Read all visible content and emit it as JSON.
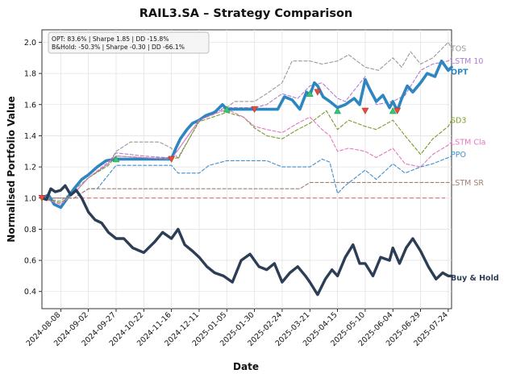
{
  "chart_data": {
    "type": "line",
    "title": "RAIL3.SA – Strategy Comparison",
    "xlabel": "Date",
    "ylabel": "Normalised Portfolio Value",
    "ylim": [
      0.29,
      2.08
    ],
    "yticks": [
      0.4,
      0.6,
      0.8,
      1.0,
      1.2,
      1.4,
      1.6,
      1.8,
      2.0
    ],
    "ytick_labels": [
      "0.4",
      "0.6",
      "0.8",
      "1.0",
      "1.2",
      "1.4",
      "1.6",
      "1.8",
      "2.0"
    ],
    "xrange": [
      "2024-07-22",
      "2025-07-27"
    ],
    "xticks": [
      "2024-08-08",
      "2024-09-02",
      "2024-09-27",
      "2024-10-22",
      "2024-11-16",
      "2024-12-11",
      "2025-01-05",
      "2025-01-30",
      "2025-02-24",
      "2025-03-21",
      "2025-04-15",
      "2025-05-10",
      "2025-06-04",
      "2025-06-29",
      "2025-07-24"
    ],
    "grid": true,
    "baseline": 1.0,
    "annotation": {
      "lines": [
        "OPT: 83.6% | Sharpe 1.85 | DD -15.8%",
        "B&Hold: -50.3% | Sharpe -0.30 | DD -66.1%"
      ],
      "position": "top-left"
    },
    "series": [
      {
        "name": "TOS",
        "color": "#999999",
        "style": "dashed",
        "x": [
          "2024-07-22",
          "2024-08-08",
          "2024-08-20",
          "2024-09-02",
          "2024-09-20",
          "2024-09-27",
          "2024-10-10",
          "2024-10-22",
          "2024-11-05",
          "2024-11-16",
          "2024-11-22",
          "2024-12-05",
          "2024-12-11",
          "2024-12-25",
          "2025-01-05",
          "2025-01-12",
          "2025-01-30",
          "2025-02-10",
          "2025-02-24",
          "2025-03-05",
          "2025-03-21",
          "2025-04-01",
          "2025-04-15",
          "2025-04-25",
          "2025-05-10",
          "2025-05-22",
          "2025-06-04",
          "2025-06-12",
          "2025-06-20",
          "2025-06-29",
          "2025-07-10",
          "2025-07-24",
          "2025-07-27"
        ],
        "y": [
          1.0,
          0.98,
          1.05,
          1.13,
          1.22,
          1.3,
          1.36,
          1.36,
          1.36,
          1.32,
          1.25,
          1.42,
          1.5,
          1.56,
          1.58,
          1.62,
          1.62,
          1.67,
          1.74,
          1.88,
          1.88,
          1.86,
          1.88,
          1.92,
          1.84,
          1.82,
          1.9,
          1.84,
          1.94,
          1.86,
          1.9,
          2.0,
          1.96
        ]
      },
      {
        "name": "LSTM 10",
        "color": "#b07cd6",
        "style": "dashed",
        "x": [
          "2024-07-22",
          "2024-08-08",
          "2024-08-20",
          "2024-09-02",
          "2024-09-20",
          "2024-09-27",
          "2024-10-22",
          "2024-11-10",
          "2024-11-16",
          "2024-11-22",
          "2024-12-11",
          "2025-01-05",
          "2025-01-30",
          "2025-02-10",
          "2025-02-24",
          "2025-03-10",
          "2025-03-21",
          "2025-04-01",
          "2025-04-15",
          "2025-04-22",
          "2025-05-10",
          "2025-05-20",
          "2025-06-04",
          "2025-06-15",
          "2025-06-29",
          "2025-07-10",
          "2025-07-24",
          "2025-07-27"
        ],
        "y": [
          1.0,
          0.96,
          1.03,
          1.13,
          1.22,
          1.29,
          1.27,
          1.26,
          1.26,
          1.31,
          1.5,
          1.58,
          1.58,
          1.6,
          1.67,
          1.64,
          1.72,
          1.74,
          1.64,
          1.62,
          1.78,
          1.6,
          1.62,
          1.66,
          1.82,
          1.86,
          1.88,
          1.9
        ]
      },
      {
        "name": "OPT",
        "color": "#2e86c1",
        "style": "solid",
        "width": 3.6,
        "x": [
          "2024-07-22",
          "2024-07-28",
          "2024-08-02",
          "2024-08-08",
          "2024-08-14",
          "2024-08-20",
          "2024-08-27",
          "2024-09-02",
          "2024-09-10",
          "2024-09-18",
          "2024-09-27",
          "2024-10-10",
          "2024-10-22",
          "2024-11-05",
          "2024-11-16",
          "2024-11-20",
          "2024-11-24",
          "2024-11-30",
          "2024-12-05",
          "2024-12-11",
          "2024-12-17",
          "2024-12-25",
          "2025-01-01",
          "2025-01-05",
          "2025-01-12",
          "2025-01-20",
          "2025-01-30",
          "2025-02-10",
          "2025-02-20",
          "2025-02-26",
          "2025-03-05",
          "2025-03-12",
          "2025-03-18",
          "2025-03-21",
          "2025-03-25",
          "2025-03-28",
          "2025-04-02",
          "2025-04-08",
          "2025-04-15",
          "2025-04-22",
          "2025-04-30",
          "2025-05-05",
          "2025-05-10",
          "2025-05-14",
          "2025-05-20",
          "2025-05-26",
          "2025-06-01",
          "2025-06-04",
          "2025-06-08",
          "2025-06-12",
          "2025-06-17",
          "2025-06-22",
          "2025-06-29",
          "2025-07-05",
          "2025-07-12",
          "2025-07-18",
          "2025-07-24",
          "2025-07-27"
        ],
        "y": [
          1.0,
          1.02,
          0.96,
          0.94,
          1.0,
          1.06,
          1.12,
          1.15,
          1.2,
          1.24,
          1.25,
          1.25,
          1.25,
          1.25,
          1.25,
          1.32,
          1.38,
          1.44,
          1.48,
          1.5,
          1.53,
          1.55,
          1.6,
          1.57,
          1.57,
          1.57,
          1.57,
          1.57,
          1.57,
          1.65,
          1.63,
          1.57,
          1.68,
          1.66,
          1.74,
          1.72,
          1.65,
          1.62,
          1.58,
          1.6,
          1.64,
          1.6,
          1.76,
          1.7,
          1.62,
          1.66,
          1.58,
          1.62,
          1.56,
          1.64,
          1.72,
          1.68,
          1.74,
          1.8,
          1.78,
          1.88,
          1.82,
          1.84
        ]
      },
      {
        "name": "SD3",
        "color": "#7a9a2a",
        "style": "dashed",
        "x": [
          "2024-07-22",
          "2024-08-08",
          "2024-08-20",
          "2024-09-02",
          "2024-09-20",
          "2024-09-27",
          "2024-10-22",
          "2024-11-16",
          "2024-11-22",
          "2024-12-11",
          "2025-01-05",
          "2025-01-20",
          "2025-01-30",
          "2025-02-10",
          "2025-02-24",
          "2025-03-10",
          "2025-03-21",
          "2025-04-05",
          "2025-04-15",
          "2025-04-25",
          "2025-05-10",
          "2025-05-20",
          "2025-06-04",
          "2025-06-15",
          "2025-06-29",
          "2025-07-10",
          "2025-07-24",
          "2025-07-27"
        ],
        "y": [
          1.0,
          0.97,
          1.03,
          1.13,
          1.21,
          1.27,
          1.26,
          1.25,
          1.26,
          1.49,
          1.55,
          1.52,
          1.45,
          1.4,
          1.38,
          1.44,
          1.48,
          1.56,
          1.44,
          1.5,
          1.46,
          1.44,
          1.5,
          1.4,
          1.28,
          1.38,
          1.46,
          1.5
        ]
      },
      {
        "name": "LSTM Cla",
        "color": "#e377c2",
        "style": "dashed",
        "x": [
          "2024-07-22",
          "2024-08-08",
          "2024-08-20",
          "2024-09-02",
          "2024-09-27",
          "2024-10-22",
          "2024-11-16",
          "2024-11-22",
          "2024-12-11",
          "2025-01-05",
          "2025-01-20",
          "2025-01-30",
          "2025-02-10",
          "2025-02-24",
          "2025-03-10",
          "2025-03-21",
          "2025-04-01",
          "2025-04-08",
          "2025-04-15",
          "2025-04-25",
          "2025-05-10",
          "2025-05-20",
          "2025-06-04",
          "2025-06-15",
          "2025-06-29",
          "2025-07-10",
          "2025-07-24",
          "2025-07-27"
        ],
        "y": [
          1.0,
          0.96,
          1.03,
          1.13,
          1.27,
          1.26,
          1.25,
          1.31,
          1.5,
          1.57,
          1.52,
          1.46,
          1.44,
          1.42,
          1.48,
          1.52,
          1.44,
          1.4,
          1.3,
          1.32,
          1.3,
          1.26,
          1.32,
          1.22,
          1.2,
          1.28,
          1.34,
          1.36
        ]
      },
      {
        "name": "PPO",
        "color": "#3d8fce",
        "style": "dashed",
        "x": [
          "2024-07-22",
          "2024-08-08",
          "2024-08-20",
          "2024-09-02",
          "2024-09-10",
          "2024-09-27",
          "2024-10-22",
          "2024-11-16",
          "2024-11-22",
          "2024-12-11",
          "2024-12-20",
          "2025-01-05",
          "2025-01-30",
          "2025-02-10",
          "2025-02-24",
          "2025-03-21",
          "2025-04-01",
          "2025-04-08",
          "2025-04-15",
          "2025-04-22",
          "2025-05-10",
          "2025-05-20",
          "2025-06-04",
          "2025-06-15",
          "2025-06-29",
          "2025-07-10",
          "2025-07-24",
          "2025-07-27"
        ],
        "y": [
          1.0,
          1.0,
          1.0,
          1.06,
          1.06,
          1.21,
          1.21,
          1.21,
          1.16,
          1.16,
          1.21,
          1.24,
          1.24,
          1.24,
          1.2,
          1.2,
          1.25,
          1.23,
          1.03,
          1.08,
          1.18,
          1.12,
          1.22,
          1.16,
          1.2,
          1.22,
          1.26,
          1.27
        ]
      },
      {
        "name": "LSTM SR",
        "color": "#a08070",
        "style": "dashed",
        "x": [
          "2024-07-22",
          "2024-08-20",
          "2024-09-02",
          "2025-03-12",
          "2025-03-21",
          "2025-07-24",
          "2025-07-27"
        ],
        "y": [
          1.0,
          1.0,
          1.06,
          1.06,
          1.1,
          1.1,
          1.1
        ]
      },
      {
        "name": "Buy & Hold",
        "color": "#2c3e55",
        "style": "solid",
        "width": 3.4,
        "x": [
          "2024-07-22",
          "2024-07-26",
          "2024-07-30",
          "2024-08-03",
          "2024-08-08",
          "2024-08-12",
          "2024-08-17",
          "2024-08-22",
          "2024-08-27",
          "2024-09-02",
          "2024-09-08",
          "2024-09-14",
          "2024-09-20",
          "2024-09-27",
          "2024-10-04",
          "2024-10-12",
          "2024-10-22",
          "2024-11-01",
          "2024-11-08",
          "2024-11-16",
          "2024-11-22",
          "2024-11-28",
          "2024-12-05",
          "2024-12-11",
          "2024-12-18",
          "2024-12-25",
          "2025-01-02",
          "2025-01-10",
          "2025-01-18",
          "2025-01-26",
          "2025-02-03",
          "2025-02-10",
          "2025-02-17",
          "2025-02-24",
          "2025-03-03",
          "2025-03-10",
          "2025-03-17",
          "2025-03-21",
          "2025-03-28",
          "2025-04-04",
          "2025-04-10",
          "2025-04-15",
          "2025-04-22",
          "2025-04-29",
          "2025-05-05",
          "2025-05-10",
          "2025-05-17",
          "2025-05-24",
          "2025-06-01",
          "2025-06-04",
          "2025-06-10",
          "2025-06-16",
          "2025-06-22",
          "2025-06-29",
          "2025-07-06",
          "2025-07-13",
          "2025-07-19",
          "2025-07-24",
          "2025-07-27"
        ],
        "y": [
          1.0,
          0.99,
          1.06,
          1.04,
          1.05,
          1.08,
          1.02,
          1.05,
          1.0,
          0.91,
          0.86,
          0.84,
          0.78,
          0.74,
          0.74,
          0.68,
          0.65,
          0.72,
          0.78,
          0.74,
          0.8,
          0.7,
          0.66,
          0.62,
          0.56,
          0.52,
          0.5,
          0.46,
          0.6,
          0.64,
          0.56,
          0.54,
          0.58,
          0.46,
          0.52,
          0.56,
          0.5,
          0.46,
          0.38,
          0.48,
          0.54,
          0.5,
          0.62,
          0.7,
          0.58,
          0.58,
          0.5,
          0.62,
          0.6,
          0.68,
          0.58,
          0.68,
          0.74,
          0.66,
          0.56,
          0.48,
          0.52,
          0.5,
          0.5
        ]
      }
    ],
    "trade_markers": {
      "buy_color": "#2ecc71",
      "sell_color": "#e74c3c",
      "buys": [
        {
          "x": "2024-09-27",
          "y": 1.25
        },
        {
          "x": "2025-01-05",
          "y": 1.57
        },
        {
          "x": "2025-03-21",
          "y": 1.67
        },
        {
          "x": "2025-04-15",
          "y": 1.56
        },
        {
          "x": "2025-06-04",
          "y": 1.56
        }
      ],
      "sells": [
        {
          "x": "2024-07-22",
          "y": 1.0
        },
        {
          "x": "2024-11-16",
          "y": 1.25
        },
        {
          "x": "2025-01-30",
          "y": 1.57
        },
        {
          "x": "2025-03-28",
          "y": 1.68
        },
        {
          "x": "2025-05-10",
          "y": 1.56
        },
        {
          "x": "2025-06-08",
          "y": 1.56
        }
      ]
    },
    "end_labels": [
      {
        "series": "TOS",
        "text": "TOS",
        "color": "#999999",
        "bold": false,
        "y": 1.96
      },
      {
        "series": "LSTM 10",
        "text": "LSTM 10",
        "color": "#b07cd6",
        "bold": false,
        "y": 1.88
      },
      {
        "series": "OPT",
        "text": "OPT",
        "color": "#2e86c1",
        "bold": true,
        "y": 1.81
      },
      {
        "series": "SD3",
        "text": "SD3",
        "color": "#7a9a2a",
        "bold": false,
        "y": 1.5
      },
      {
        "series": "LSTM Cla",
        "text": "LSTM Cla",
        "color": "#e377c2",
        "bold": false,
        "y": 1.36
      },
      {
        "series": "PPO",
        "text": "PPO",
        "color": "#3d8fce",
        "bold": false,
        "y": 1.28
      },
      {
        "series": "LSTM SR",
        "text": "LSTM SR",
        "color": "#a08070",
        "bold": false,
        "y": 1.1
      },
      {
        "series": "Buy & Hold",
        "text": "Buy & Hold",
        "color": "#2c3e55",
        "bold": true,
        "y": 0.49
      }
    ]
  }
}
